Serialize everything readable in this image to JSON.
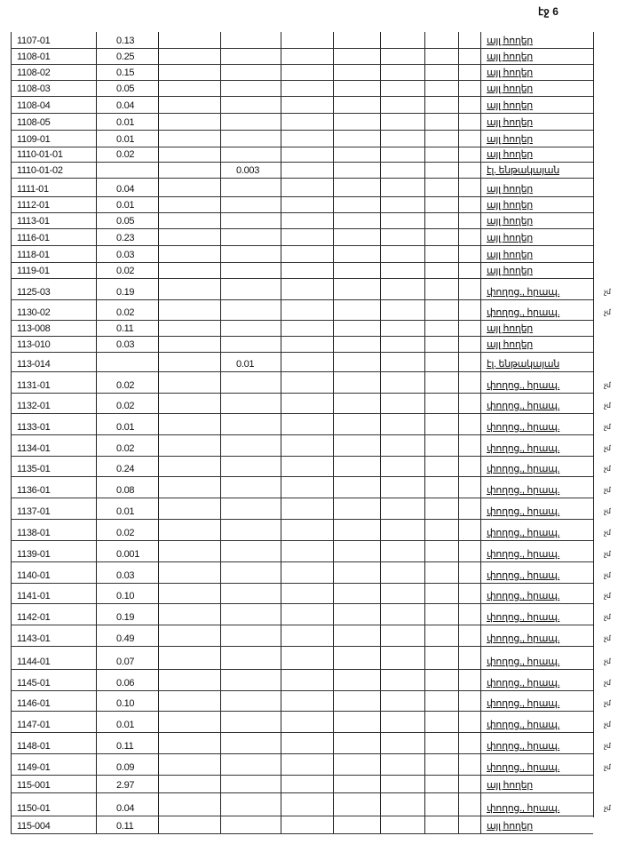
{
  "page_number": "էջ 6",
  "rows": [
    {
      "id": "1107-01",
      "value": "0.13",
      "use": "այլ հողեր"
    },
    {
      "id": "1108-01",
      "value": "0.25",
      "use": "այլ հողեր"
    },
    {
      "id": "1108-02",
      "value": "0.15",
      "use": "այլ հողեր"
    },
    {
      "id": "1108-03",
      "value": "0.05",
      "use": "այլ հողեր"
    },
    {
      "id": "1108-04",
      "value": "0.04",
      "use": "այլ հողեր"
    },
    {
      "id": "1108-05",
      "value": "0.01",
      "use": "այլ հողեր"
    },
    {
      "id": "1109-01",
      "value": "0.01",
      "use": "այլ հողեր"
    },
    {
      "id": "1110-01-01",
      "value": "0.02",
      "use": "այլ հողեր"
    },
    {
      "id": "1110-01-02",
      "value2": "0.003",
      "use": "էլ. ենթակայան"
    },
    {
      "id": "1111-01",
      "value": "0.04",
      "use": "այլ հողեր"
    },
    {
      "id": "1112-01",
      "value": "0.01",
      "use": "այլ հողեր"
    },
    {
      "id": "1113-01",
      "value": "0.05",
      "use": "այլ հողեր"
    },
    {
      "id": "1116-01",
      "value": "0.23",
      "use": "այլ հողեր"
    },
    {
      "id": "1118-01",
      "value": "0.03",
      "use": "այլ հողեր"
    },
    {
      "id": "1119-01",
      "value": "0.02",
      "use": "այլ հողեր"
    },
    {
      "id": "1125-03",
      "value": "0.19",
      "use": "փողոց., հրապ.",
      "mark": "չմ"
    },
    {
      "id": "1130-02",
      "value": "0.02",
      "use": "փողոց., հրապ.",
      "mark": "չմ"
    },
    {
      "id": "113-008",
      "value": "0.11",
      "use": "այլ հողեր"
    },
    {
      "id": "113-010",
      "value": "0.03",
      "use": "այլ հողեր"
    },
    {
      "id": "113-014",
      "value2": "0.01",
      "use": "էլ. ենթակայան"
    },
    {
      "id": "1131-01",
      "value": "0.02",
      "use": "փողոց., հրապ.",
      "mark": "չմ"
    },
    {
      "id": "1132-01",
      "value": "0.02",
      "use": "փողոց., հրապ.",
      "mark": "չմ"
    },
    {
      "id": "1133-01",
      "value": "0.01",
      "use": "փողոց., հրապ.",
      "mark": "չմ"
    },
    {
      "id": "1134-01",
      "value": "0.02",
      "use": "փողոց., հրապ.",
      "mark": "չմ"
    },
    {
      "id": "1135-01",
      "value": "0.24",
      "use": "փողոց., հրապ.",
      "mark": "չմ"
    },
    {
      "id": "1136-01",
      "value": "0.08",
      "use": "փողոց., հրապ.",
      "mark": "չմ"
    },
    {
      "id": "1137-01",
      "value": "0.01",
      "use": "փողոց., հրապ.",
      "mark": "չմ"
    },
    {
      "id": "1138-01",
      "value": "0.02",
      "use": "փողոց., հրապ.",
      "mark": "չմ"
    },
    {
      "id": "1139-01",
      "value": "0.001",
      "use": "փողոց., հրապ.",
      "mark": "չմ"
    },
    {
      "id": "1140-01",
      "value": "0.03",
      "use": "փողոց., հրապ.",
      "mark": "չմ"
    },
    {
      "id": "1141-01",
      "value": "0.10",
      "use": "փողոց., հրապ.",
      "mark": "չմ"
    },
    {
      "id": "1142-01",
      "value": "0.19",
      "use": "փողոց., հրապ.",
      "mark": "չմ"
    },
    {
      "id": "1143-01",
      "value": "0.49",
      "use": "փողոց., հրապ.",
      "mark": "չմ"
    },
    {
      "id": "1144-01",
      "value": "0.07",
      "use": "փողոց., հրապ.",
      "mark": "չմ"
    },
    {
      "id": "1145-01",
      "value": "0.06",
      "use": "փողոց., հրապ.",
      "mark": "չմ"
    },
    {
      "id": "1146-01",
      "value": "0.10",
      "use": "փողոց., հրապ.",
      "mark": "չմ"
    },
    {
      "id": "1147-01",
      "value": "0.01",
      "use": "փողոց., հրապ.",
      "mark": "չմ"
    },
    {
      "id": "1148-01",
      "value": "0.11",
      "use": "փողոց., հրապ.",
      "mark": "չմ"
    },
    {
      "id": "1149-01",
      "value": "0.09",
      "use": "փողոց., հրապ.",
      "mark": "չմ"
    },
    {
      "id": "115-001",
      "value": "2.97",
      "use": "այլ հողեր"
    },
    {
      "id": "1150-01",
      "value": "0.04",
      "use": "փողոց., հրապ.",
      "mark": "չմ"
    },
    {
      "id": "115-004",
      "value": "0.11",
      "use": "այլ հողեր"
    }
  ]
}
